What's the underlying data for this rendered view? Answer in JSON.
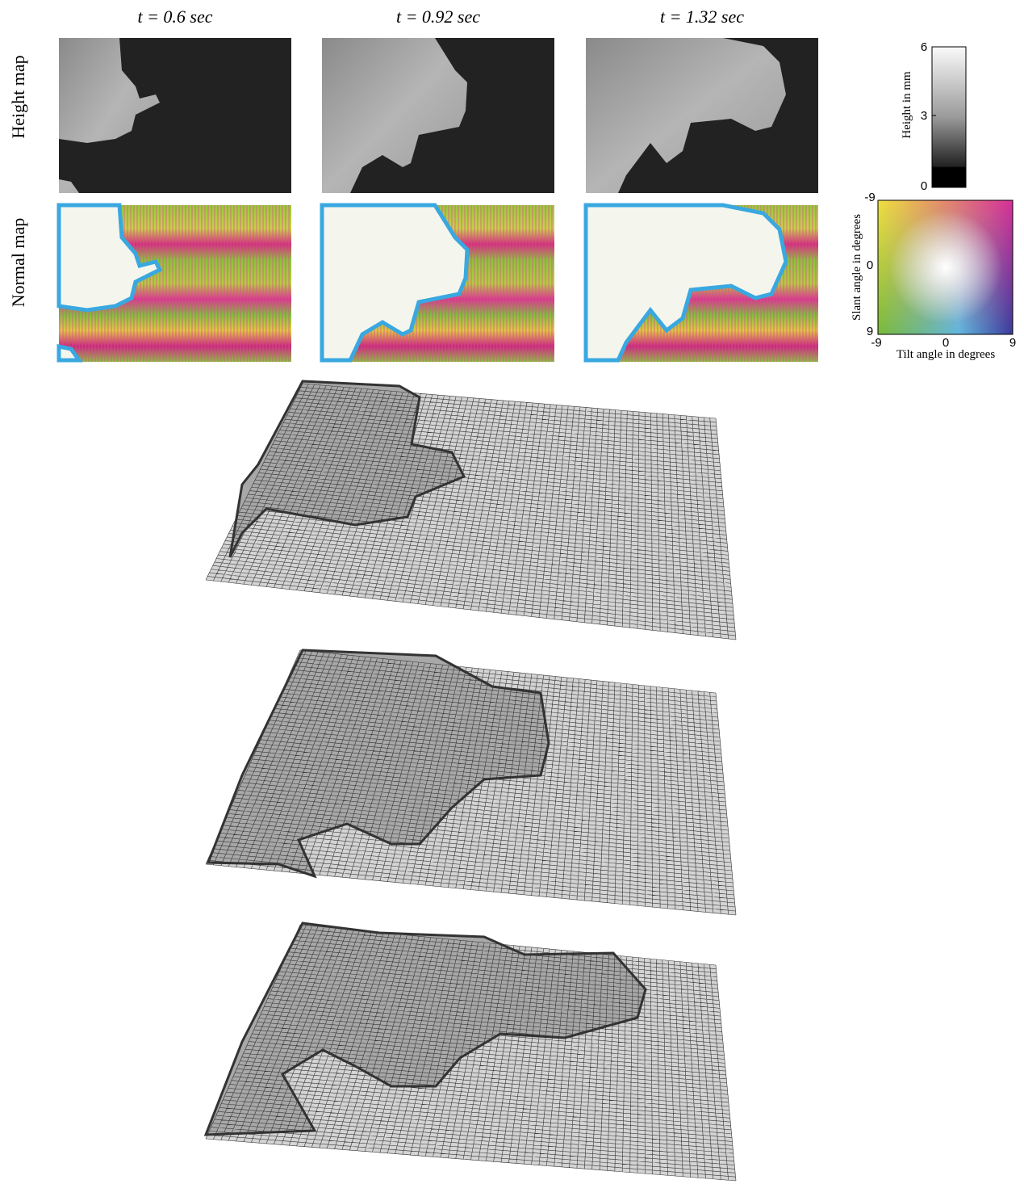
{
  "columns": [
    {
      "time": "t = 0.6 sec"
    },
    {
      "time": "t = 0.92 sec"
    },
    {
      "time": "t = 1.32 sec"
    }
  ],
  "rows": [
    "Height map",
    "Normal map"
  ],
  "height_colorbar": {
    "label": "Height in mm",
    "ticks": [
      6,
      3,
      0
    ]
  },
  "normal_legend": {
    "x_label": "Tilt angle in degrees",
    "y_label": "Slant angle in degrees",
    "x_ticks": [
      -9,
      0,
      9
    ],
    "y_ticks": [
      -9,
      0,
      9
    ]
  }
}
